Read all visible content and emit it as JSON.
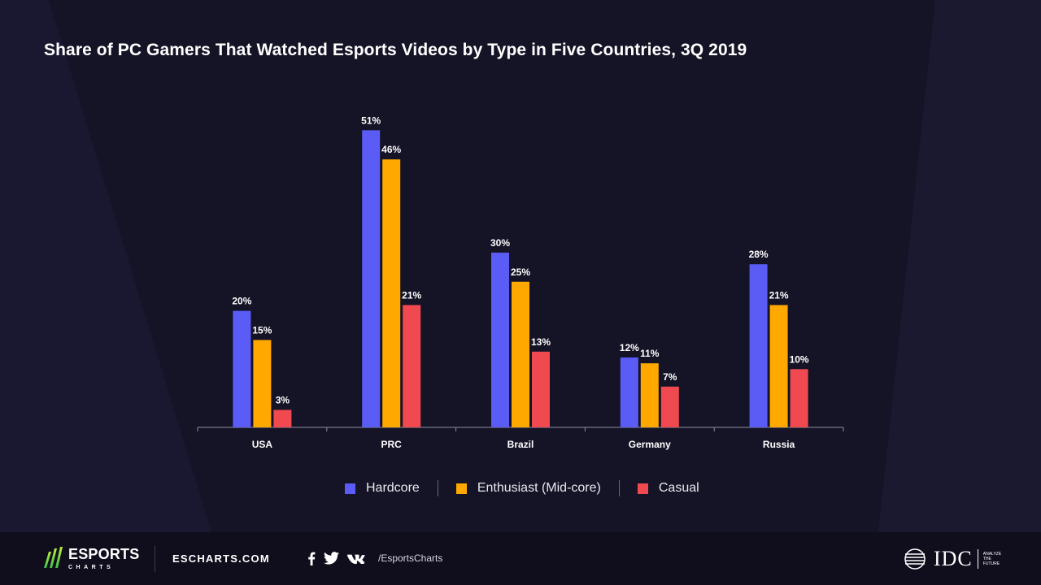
{
  "colors": {
    "background": "#151326",
    "hardcore": "#5b5cf6",
    "enthusiast": "#ffa800",
    "casual": "#f04a50",
    "axis": "#8f8ea0"
  },
  "chart_data": {
    "type": "bar",
    "title": "Share of PC Gamers That Watched Esports Videos by Type in Five Countries, 3Q 2019",
    "categories": [
      "USA",
      "PRC",
      "Brazil",
      "Germany",
      "Russia"
    ],
    "series": [
      {
        "name": "Hardcore",
        "values": [
          20,
          51,
          30,
          12,
          28
        ],
        "labels": [
          "20%",
          "51%",
          "30%",
          "12%",
          "28%"
        ],
        "color": "#5b5cf6"
      },
      {
        "name": "Enthusiast (Mid-core)",
        "values": [
          15,
          46,
          25,
          11,
          21
        ],
        "labels": [
          "15%",
          "46%",
          "25%",
          "11%",
          "21%"
        ],
        "color": "#ffa800"
      },
      {
        "name": "Casual",
        "values": [
          3,
          21,
          13,
          7,
          10
        ],
        "labels": [
          "3%",
          "21%",
          "13%",
          "7%",
          "10%"
        ],
        "color": "#f04a50"
      }
    ],
    "ylim": [
      0,
      60
    ],
    "grid": false,
    "legend_position": "bottom"
  },
  "legend": {
    "items": [
      {
        "label": "Hardcore",
        "color": "#5b5cf6"
      },
      {
        "label": "Enthusiast (Mid-core)",
        "color": "#ffa800"
      },
      {
        "label": "Casual",
        "color": "#f04a50"
      }
    ]
  },
  "footer": {
    "logo_main": "ESPORTS",
    "logo_sub": "CHARTS",
    "site": "ESCHARTS.COM",
    "social_icons": [
      "facebook-icon",
      "twitter-icon",
      "vk-icon"
    ],
    "handle": "/EsportsCharts",
    "idc_text": "IDC",
    "idc_tagline": "ANALYZE THE FUTURE"
  }
}
